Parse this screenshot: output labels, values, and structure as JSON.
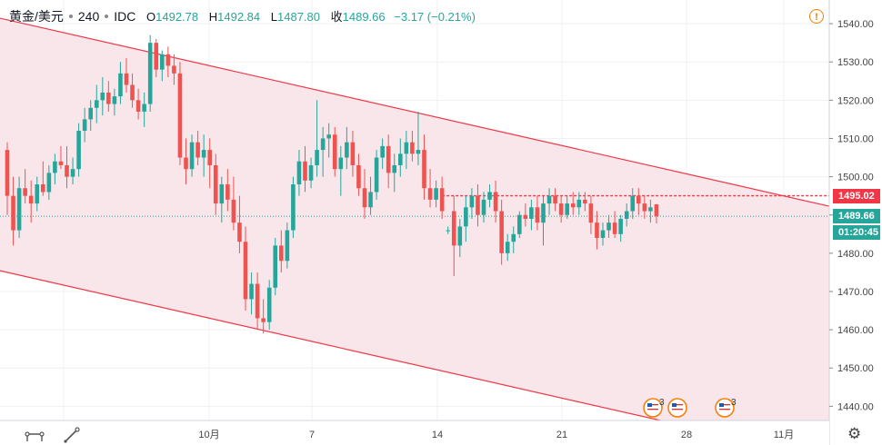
{
  "header": {
    "symbol": "黄金/美元",
    "interval": "240",
    "source": "IDC",
    "open_label": "O",
    "open": "1492.78",
    "high_label": "H",
    "high": "1492.84",
    "low_label": "L",
    "low": "1487.80",
    "close_label": "收",
    "close": "1489.66",
    "change": "−3.17",
    "change_pct": "(−0.21%)"
  },
  "warning_icon": "!",
  "price_tags": {
    "resistance": {
      "value": "1495.02",
      "color": "#f23645"
    },
    "last": {
      "value": "1489.66",
      "color": "#26a69a"
    },
    "countdown": {
      "value": "01:20:45",
      "color": "#26a69a"
    }
  },
  "events": [
    {
      "icon": "us-flag-icon",
      "count": "3"
    },
    {
      "icon": "us-flag-icon",
      "count": ""
    },
    {
      "icon": "us-flag-icon",
      "count": "3"
    }
  ],
  "toolbar": {
    "settings_icon": "gear-icon",
    "zoom_icon": "measure-icon",
    "draw_icon": "pencil-icon"
  },
  "colors": {
    "up": "#26a69a",
    "down": "#ef5350",
    "channel": "#f23645",
    "channel_fill": "#f7e3e8"
  },
  "chart_data": {
    "type": "candlestick",
    "x_tick_labels": [
      "10月",
      "7",
      "14",
      "21",
      "28",
      "11月"
    ],
    "y_ticks": [
      1440,
      1450,
      1460,
      1470,
      1480,
      1490,
      1500,
      1510,
      1520,
      1530,
      1540
    ],
    "ylim": [
      1437,
      1545
    ],
    "grid": true,
    "bars": [
      [
        1507,
        1509,
        1490,
        1495
      ],
      [
        1495,
        1500,
        1482,
        1486
      ],
      [
        1486,
        1500,
        1484,
        1497
      ],
      [
        1497,
        1502,
        1493,
        1495
      ],
      [
        1495,
        1499,
        1488,
        1493
      ],
      [
        1493,
        1500,
        1491,
        1498
      ],
      [
        1498,
        1504,
        1495,
        1496
      ],
      [
        1496,
        1503,
        1494,
        1501
      ],
      [
        1501,
        1506,
        1498,
        1504
      ],
      [
        1504,
        1508,
        1502,
        1503
      ],
      [
        1503,
        1508,
        1497,
        1500
      ],
      [
        1500,
        1505,
        1498,
        1502
      ],
      [
        1502,
        1514,
        1500,
        1512
      ],
      [
        1512,
        1518,
        1509,
        1515
      ],
      [
        1515,
        1520,
        1512,
        1518
      ],
      [
        1518,
        1524,
        1514,
        1520
      ],
      [
        1520,
        1526,
        1516,
        1522
      ],
      [
        1522,
        1525,
        1517,
        1519
      ],
      [
        1519,
        1523,
        1516,
        1521
      ],
      [
        1521,
        1530,
        1519,
        1527
      ],
      [
        1527,
        1531,
        1522,
        1524
      ],
      [
        1524,
        1527,
        1518,
        1520
      ],
      [
        1520,
        1523,
        1515,
        1517
      ],
      [
        1517,
        1522,
        1513,
        1519
      ],
      [
        1519,
        1537,
        1517,
        1535
      ],
      [
        1535,
        1536,
        1526,
        1528
      ],
      [
        1528,
        1533,
        1525,
        1532
      ],
      [
        1532,
        1534,
        1526,
        1529
      ],
      [
        1529,
        1532,
        1524,
        1527
      ],
      [
        1527,
        1530,
        1503,
        1505
      ],
      [
        1505,
        1510,
        1498,
        1502
      ],
      [
        1502,
        1511,
        1500,
        1509
      ],
      [
        1509,
        1512,
        1503,
        1505
      ],
      [
        1505,
        1511,
        1500,
        1507
      ],
      [
        1507,
        1510,
        1497,
        1503
      ],
      [
        1503,
        1506,
        1490,
        1493
      ],
      [
        1493,
        1500,
        1488,
        1498
      ],
      [
        1498,
        1502,
        1491,
        1494
      ],
      [
        1494,
        1500,
        1486,
        1488
      ],
      [
        1488,
        1495,
        1480,
        1483
      ],
      [
        1483,
        1487,
        1465,
        1468
      ],
      [
        1468,
        1475,
        1464,
        1472
      ],
      [
        1472,
        1475,
        1460,
        1463
      ],
      [
        1463,
        1468,
        1459,
        1462
      ],
      [
        1462,
        1473,
        1460,
        1471
      ],
      [
        1471,
        1484,
        1469,
        1482
      ],
      [
        1482,
        1486,
        1475,
        1478
      ],
      [
        1478,
        1488,
        1476,
        1486
      ],
      [
        1486,
        1500,
        1484,
        1498
      ],
      [
        1498,
        1507,
        1495,
        1504
      ],
      [
        1504,
        1508,
        1496,
        1499
      ],
      [
        1499,
        1505,
        1497,
        1503
      ],
      [
        1503,
        1520,
        1500,
        1507
      ],
      [
        1507,
        1513,
        1500,
        1510
      ],
      [
        1510,
        1514,
        1505,
        1511
      ],
      [
        1511,
        1513,
        1500,
        1502
      ],
      [
        1502,
        1508,
        1495,
        1505
      ],
      [
        1505,
        1513,
        1502,
        1509
      ],
      [
        1509,
        1512,
        1500,
        1503
      ],
      [
        1503,
        1506,
        1495,
        1497
      ],
      [
        1497,
        1502,
        1489,
        1492
      ],
      [
        1492,
        1500,
        1490,
        1496
      ],
      [
        1496,
        1507,
        1494,
        1505
      ],
      [
        1505,
        1510,
        1502,
        1508
      ],
      [
        1508,
        1511,
        1497,
        1501
      ],
      [
        1501,
        1506,
        1496,
        1503
      ],
      [
        1503,
        1510,
        1500,
        1506
      ],
      [
        1506,
        1512,
        1502,
        1509
      ],
      [
        1509,
        1512,
        1504,
        1506
      ],
      [
        1506,
        1517,
        1503,
        1507
      ],
      [
        1507,
        1511,
        1494,
        1497
      ],
      [
        1497,
        1502,
        1492,
        1494
      ],
      [
        1494,
        1499,
        1492,
        1497
      ],
      [
        1497,
        1500,
        1489,
        1491
      ],
      [
        1486,
        1487,
        1485,
        1486
      ],
      [
        1491,
        1495,
        1474,
        1482
      ],
      [
        1482,
        1489,
        1479,
        1487
      ],
      [
        1487,
        1495,
        1483,
        1492
      ],
      [
        1492,
        1497,
        1489,
        1495
      ],
      [
        1495,
        1498,
        1487,
        1490
      ],
      [
        1490,
        1496,
        1488,
        1494
      ],
      [
        1494,
        1498,
        1492,
        1496
      ],
      [
        1496,
        1499,
        1488,
        1491
      ],
      [
        1491,
        1494,
        1477,
        1480
      ],
      [
        1480,
        1485,
        1478,
        1483
      ],
      [
        1483,
        1487,
        1480,
        1485
      ],
      [
        1485,
        1491,
        1484,
        1490
      ],
      [
        1490,
        1493,
        1487,
        1489
      ],
      [
        1489,
        1494,
        1486,
        1492
      ],
      [
        1492,
        1495,
        1486,
        1488
      ],
      [
        1488,
        1495,
        1482,
        1493
      ],
      [
        1493,
        1497,
        1490,
        1495
      ],
      [
        1495,
        1497,
        1491,
        1493
      ],
      [
        1493,
        1495,
        1488,
        1490
      ],
      [
        1490,
        1495,
        1489,
        1493
      ],
      [
        1493,
        1496,
        1490,
        1492
      ],
      [
        1492,
        1496,
        1490,
        1494
      ],
      [
        1494,
        1496,
        1491,
        1493
      ],
      [
        1493,
        1495,
        1485,
        1488
      ],
      [
        1488,
        1491,
        1481,
        1484
      ],
      [
        1484,
        1488,
        1482,
        1486
      ],
      [
        1486,
        1490,
        1484,
        1488
      ],
      [
        1488,
        1491,
        1484,
        1485
      ],
      [
        1485,
        1490,
        1483,
        1489
      ],
      [
        1489,
        1493,
        1487,
        1491
      ],
      [
        1491,
        1497,
        1489,
        1495
      ],
      [
        1495,
        1497,
        1490,
        1493
      ],
      [
        1493,
        1495,
        1489,
        1491
      ],
      [
        1491,
        1494,
        1488,
        1492
      ],
      [
        1492.78,
        1492.84,
        1487.8,
        1489.66
      ]
    ],
    "channel": {
      "upper": [
        {
          "bar": 0,
          "price": 1541
        },
        {
          "bar": 136,
          "price": 1493
        }
      ],
      "lower": [
        {
          "bar": 0,
          "price": 1475
        },
        {
          "bar": 136,
          "price": 1427
        }
      ]
    },
    "resistance_level": 1495.02,
    "last_price": 1489.66
  }
}
